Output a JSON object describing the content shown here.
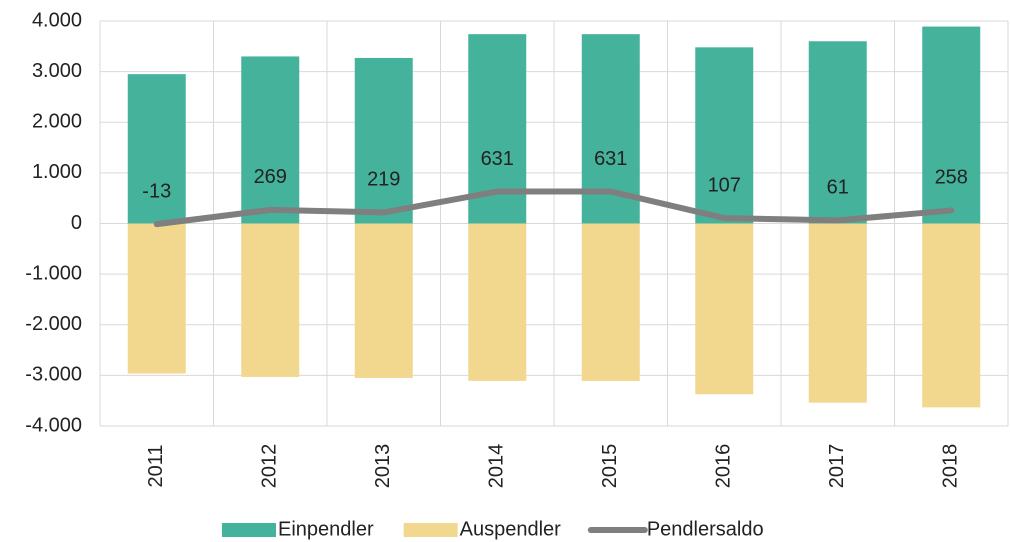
{
  "chart_data": {
    "type": "bar_line",
    "categories": [
      "2011",
      "2012",
      "2013",
      "2014",
      "2015",
      "2016",
      "2017",
      "2018"
    ],
    "series": [
      {
        "name": "Einpendler",
        "color": "#45b39c",
        "type": "bar",
        "values": [
          2950,
          3300,
          3270,
          3740,
          3740,
          3480,
          3600,
          3890
        ]
      },
      {
        "name": "Auspendler",
        "color": "#f2d78e",
        "type": "bar",
        "values": [
          -2963,
          -3031,
          -3051,
          -3109,
          -3109,
          -3373,
          -3539,
          -3632
        ]
      },
      {
        "name": "Pendlersaldo",
        "color": "#7f7f7f",
        "type": "line",
        "values": [
          -13,
          269,
          219,
          631,
          631,
          107,
          61,
          258
        ]
      }
    ],
    "ylim": [
      -4000,
      4000
    ],
    "yticks": [
      {
        "value": -4000,
        "label": "-4.000"
      },
      {
        "value": -3000,
        "label": "-3.000"
      },
      {
        "value": -2000,
        "label": "-2.000"
      },
      {
        "value": -1000,
        "label": "-1.000"
      },
      0,
      {
        "value": 1000,
        "label": "1.000"
      },
      {
        "value": 2000,
        "label": "2.000"
      },
      {
        "value": 3000,
        "label": "3.000"
      },
      {
        "value": 4000,
        "label": "4.000"
      }
    ],
    "grid": true,
    "legend": "bottom"
  }
}
